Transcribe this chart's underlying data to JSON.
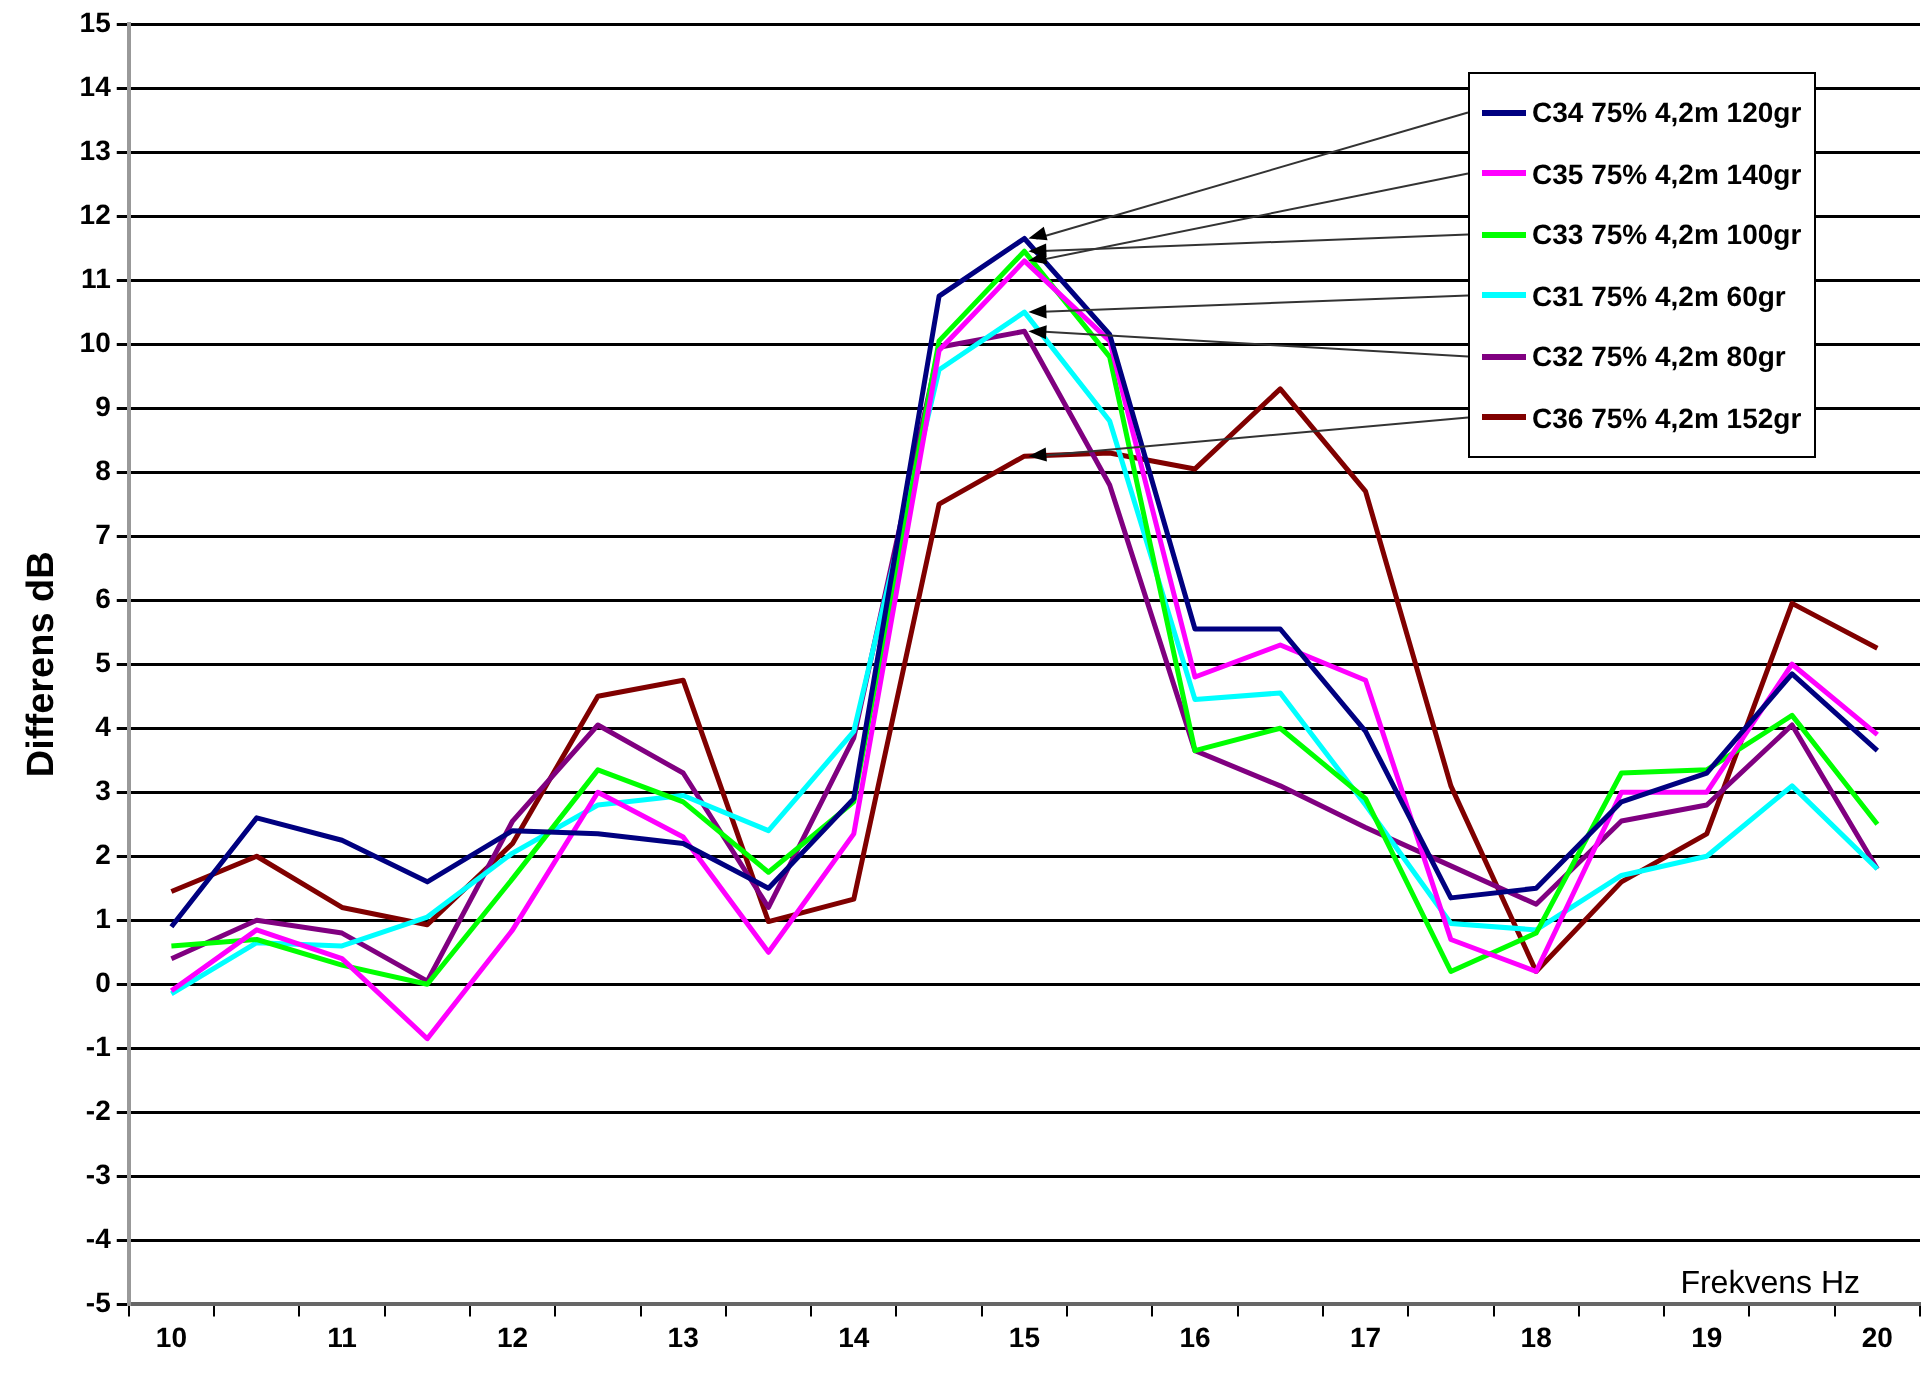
{
  "chart_data": {
    "type": "line",
    "xlabel": "Frekvens Hz",
    "ylabel": "Differens dB",
    "categories": [
      "10",
      null,
      "11",
      null,
      "12",
      null,
      "13",
      null,
      "14",
      null,
      "15",
      null,
      "16",
      null,
      "17",
      null,
      "18",
      null,
      "19",
      null,
      "20"
    ],
    "ylim": [
      -5,
      15
    ],
    "yticks": [
      -5,
      -4,
      -3,
      -2,
      -1,
      0,
      1,
      2,
      3,
      4,
      5,
      6,
      7,
      8,
      9,
      10,
      11,
      12,
      13,
      14,
      15
    ],
    "grid": "y",
    "legend": "top right",
    "marker": "none",
    "line_style": "solid",
    "series": [
      {
        "name": "C34 75% 4,2m 120gr",
        "color": "#000080",
        "values": [
          0.9,
          2.6,
          2.25,
          1.6,
          2.4,
          2.35,
          2.2,
          1.5,
          2.9,
          10.75,
          11.65,
          10.15,
          5.55,
          5.55,
          3.95,
          1.35,
          1.5,
          2.85,
          3.3,
          4.85,
          3.65
        ]
      },
      {
        "name": "C35 75% 4,2m 140gr",
        "color": "#ff00ff",
        "values": [
          -0.1,
          0.85,
          0.4,
          -0.85,
          0.85,
          3.0,
          2.3,
          0.5,
          2.35,
          9.9,
          11.3,
          10.05,
          4.8,
          5.3,
          4.75,
          0.7,
          0.2,
          3.0,
          3.0,
          5.0,
          3.9
        ]
      },
      {
        "name": "C33 75% 4,2m 100gr",
        "color": "#00ff00",
        "values": [
          0.6,
          0.7,
          0.3,
          0.0,
          1.65,
          3.35,
          2.85,
          1.75,
          2.85,
          10.05,
          11.45,
          9.8,
          3.65,
          4.0,
          2.9,
          0.2,
          0.8,
          3.3,
          3.35,
          4.2,
          2.5
        ]
      },
      {
        "name": "C31 75% 4,2m 60gr",
        "color": "#00ffff",
        "values": [
          -0.15,
          0.65,
          0.6,
          1.05,
          2.05,
          2.8,
          2.95,
          2.4,
          3.95,
          9.6,
          10.5,
          8.8,
          4.45,
          4.55,
          2.8,
          0.95,
          0.85,
          1.7,
          2.0,
          3.1,
          1.8
        ]
      },
      {
        "name": "C32 75% 4,2m 80gr",
        "color": "#800080",
        "values": [
          0.4,
          1.0,
          0.8,
          0.05,
          2.55,
          4.05,
          3.3,
          1.2,
          3.85,
          9.95,
          10.2,
          7.8,
          3.65,
          3.1,
          2.45,
          1.85,
          1.25,
          2.55,
          2.8,
          4.05,
          1.8
        ]
      },
      {
        "name": "C36 75% 4,2m 152gr",
        "color": "#800000",
        "values": [
          1.45,
          2.0,
          1.2,
          0.93,
          2.2,
          4.5,
          4.75,
          0.98,
          1.33,
          7.5,
          8.25,
          8.3,
          8.05,
          9.3,
          7.7,
          3.1,
          0.2,
          1.6,
          2.35,
          5.95,
          5.25
        ]
      }
    ]
  }
}
